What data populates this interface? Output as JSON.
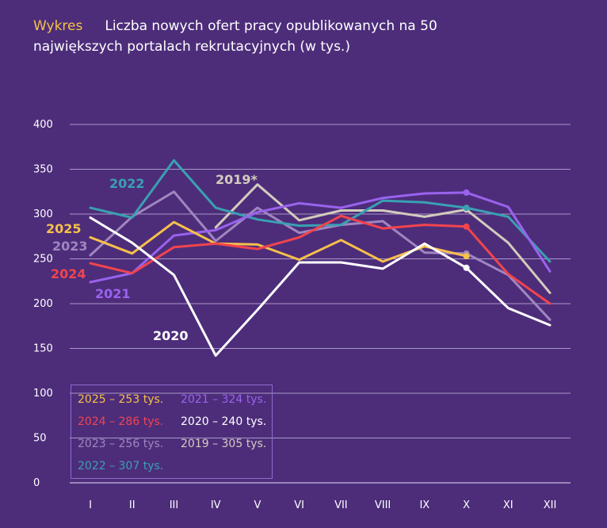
{
  "header": {
    "tag": "Wykres",
    "title_line1": "Liczba nowych ofert pracy opublikowanych na 50",
    "title_line2": "największych portalach rekrutacyjnych (w tys.)"
  },
  "chart_data": {
    "type": "line",
    "title": "Liczba nowych ofert pracy opublikowanych na 50 największych portalach rekrutacyjnych (w tys.)",
    "categories": [
      "I",
      "II",
      "III",
      "IV",
      "V",
      "VI",
      "VII",
      "VIII",
      "IX",
      "X",
      "XI",
      "XII"
    ],
    "ylim": [
      0,
      400
    ],
    "yticks": [
      0,
      50,
      100,
      150,
      200,
      250,
      300,
      350,
      400
    ],
    "grid": true,
    "series": [
      {
        "name": "2019*",
        "color": "#d3cbbd",
        "label": "2019*",
        "legend": "2019 – 305 tys.",
        "values": [
          null,
          null,
          null,
          285,
          333,
          293,
          304,
          304,
          297,
          305,
          268,
          212
        ]
      },
      {
        "name": "2023",
        "color": "#9f86c0",
        "label": "2023",
        "legend": "2023 – 256 tys.",
        "values": [
          254,
          297,
          325,
          270,
          307,
          279,
          288,
          292,
          257,
          256,
          232,
          182
        ]
      },
      {
        "name": "2022",
        "color": "#3aa0b2",
        "label": "2022",
        "legend": "2022 – 307 tys.",
        "values": [
          307,
          296,
          360,
          307,
          294,
          287,
          288,
          315,
          313,
          307,
          297,
          247
        ]
      },
      {
        "name": "2021",
        "color": "#9a63ee",
        "label": "2021",
        "legend": "2021 – 324 tys.",
        "values": [
          224,
          234,
          276,
          282,
          302,
          312,
          307,
          318,
          323,
          324,
          308,
          236
        ]
      },
      {
        "name": "2025",
        "color": "#f7c04a",
        "label": "2025",
        "legend": "2025 – 253 tys.",
        "values": [
          274,
          256,
          291,
          267,
          266,
          249,
          271,
          247,
          264,
          253,
          null,
          null
        ]
      },
      {
        "name": "2024",
        "color": "#f2444d",
        "label": "2024",
        "legend": "2024 – 286 tys.",
        "values": [
          245,
          234,
          263,
          267,
          261,
          274,
          298,
          284,
          288,
          286,
          233,
          200
        ]
      },
      {
        "name": "2020",
        "color": "#ffffff",
        "label": "2020",
        "legend": "2020 – 240 tys.",
        "values": [
          296,
          268,
          232,
          142,
          193,
          246,
          246,
          239,
          267,
          240,
          195,
          176
        ]
      }
    ]
  }
}
